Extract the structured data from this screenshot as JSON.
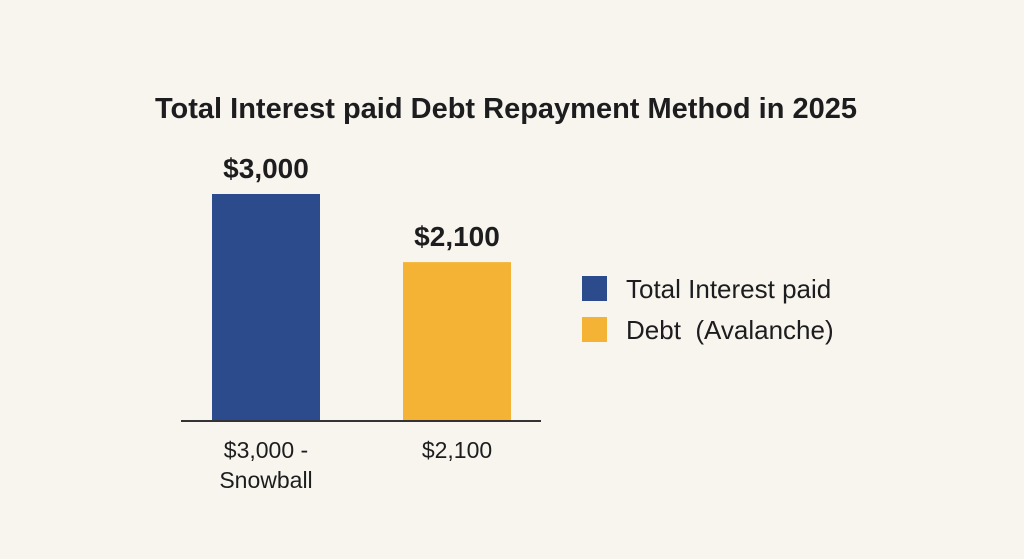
{
  "chart_data": {
    "type": "bar",
    "title": "Total Interest paid Debt Repayment Method in 2025",
    "categories": [
      [
        "$3,000 -",
        "Snowball"
      ],
      [
        "$2,100"
      ]
    ],
    "values": [
      3000,
      2100
    ],
    "data_labels": [
      "$3,000",
      "$2,100"
    ],
    "bar_colors": [
      "#2b4b8c",
      "#f5b335"
    ],
    "axis_color": "#333333",
    "ylim": [
      0,
      3000
    ],
    "grid": false,
    "legend_position": "right",
    "legend": [
      {
        "label": "Total Interest paid",
        "color": "#2b4b8c"
      },
      {
        "label": "Debt  (Avalanche)",
        "color": "#f5b335"
      }
    ]
  }
}
